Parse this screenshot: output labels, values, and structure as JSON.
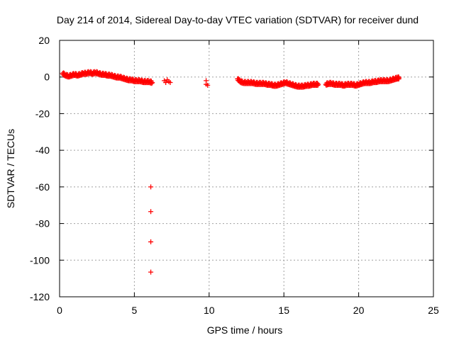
{
  "chart_data": {
    "type": "scatter",
    "title": "Day 214 of 2014, Sidereal Day-to-day VTEC variation (SDTVAR) for receiver dund",
    "xlabel": "GPS time / hours",
    "ylabel": "SDTVAR / TECUs",
    "xlim": [
      0,
      25
    ],
    "ylim": [
      -120,
      20
    ],
    "xticks": [
      0,
      5,
      10,
      15,
      20,
      25
    ],
    "xtick_labels": [
      "0",
      "5",
      "10",
      "15",
      "20",
      "25"
    ],
    "yticks": [
      20,
      0,
      -20,
      -40,
      -60,
      -80,
      -100,
      -120
    ],
    "ytick_labels": [
      "20",
      "0",
      "-20",
      "-40",
      "-60",
      "-80",
      "-100",
      "-120"
    ],
    "grid": true,
    "marker": "+",
    "color": "#ff0000",
    "series": [
      {
        "name": "SDTVAR",
        "segments": [
          {
            "x": [
              0.2,
              0.4,
              0.6,
              0.8,
              1.0,
              1.2,
              1.4,
              1.6,
              1.8,
              2.0,
              2.2,
              2.4,
              2.6,
              2.8,
              3.0,
              3.2,
              3.4,
              3.6,
              3.8,
              4.0,
              4.2,
              4.4,
              4.6,
              4.8,
              5.0,
              5.2,
              5.4,
              5.6,
              5.8,
              6.0,
              6.2
            ],
            "y": [
              2,
              1,
              0.5,
              1,
              1.5,
              1,
              1.5,
              2,
              2,
              2.5,
              2,
              2.5,
              2,
              1.5,
              1.5,
              1,
              1,
              0.5,
              0,
              0,
              -0.5,
              -1,
              -1.5,
              -1.5,
              -2,
              -2,
              -2,
              -2.5,
              -2.5,
              -2.5,
              -3
            ]
          },
          {
            "x": [
              6.1,
              6.1,
              6.1,
              6.1
            ],
            "y": [
              -60,
              -73.5,
              -90,
              -106.5
            ]
          },
          {
            "x": [
              7.0,
              7.1,
              7.2,
              7.3,
              7.4
            ],
            "y": [
              -2,
              -3,
              -1.5,
              -2.5,
              -3
            ]
          },
          {
            "x": [
              9.8,
              9.8,
              9.9
            ],
            "y": [
              -2,
              -4,
              -4.5
            ]
          },
          {
            "x": [
              11.9,
              12.1,
              12.3,
              12.5,
              12.7,
              12.9,
              13.1,
              13.3,
              13.5,
              13.7,
              13.9,
              14.1,
              14.3,
              14.5,
              14.7,
              14.9,
              15.1,
              15.3,
              15.5,
              15.7,
              15.9,
              16.1,
              16.3,
              16.5,
              16.7,
              16.9,
              17.1,
              17.3
            ],
            "y": [
              -1,
              -2.5,
              -3,
              -3,
              -3,
              -3,
              -3.5,
              -3.5,
              -3.5,
              -3.5,
              -4,
              -4,
              -4.5,
              -4.5,
              -4,
              -3.5,
              -3,
              -3.5,
              -4,
              -4.5,
              -5,
              -5,
              -5,
              -4.5,
              -4.5,
              -4,
              -4,
              -4
            ]
          },
          {
            "x": [
              17.8,
              18.0,
              18.2,
              18.4,
              18.6,
              18.8,
              19.0,
              19.2,
              19.4,
              19.6,
              19.8,
              20.0,
              20.2,
              20.4,
              20.6,
              20.8,
              21.0,
              21.2,
              21.4,
              21.6,
              21.8,
              22.0,
              22.2,
              22.4,
              22.6,
              22.7
            ],
            "y": [
              -4,
              -3.5,
              -3.5,
              -4,
              -4,
              -4,
              -4.5,
              -4,
              -4,
              -4,
              -4.5,
              -4,
              -3.5,
              -3,
              -3,
              -3,
              -2.5,
              -2.5,
              -2,
              -2,
              -2,
              -2,
              -1.5,
              -1,
              -0.5,
              -0.5
            ]
          }
        ]
      }
    ]
  }
}
